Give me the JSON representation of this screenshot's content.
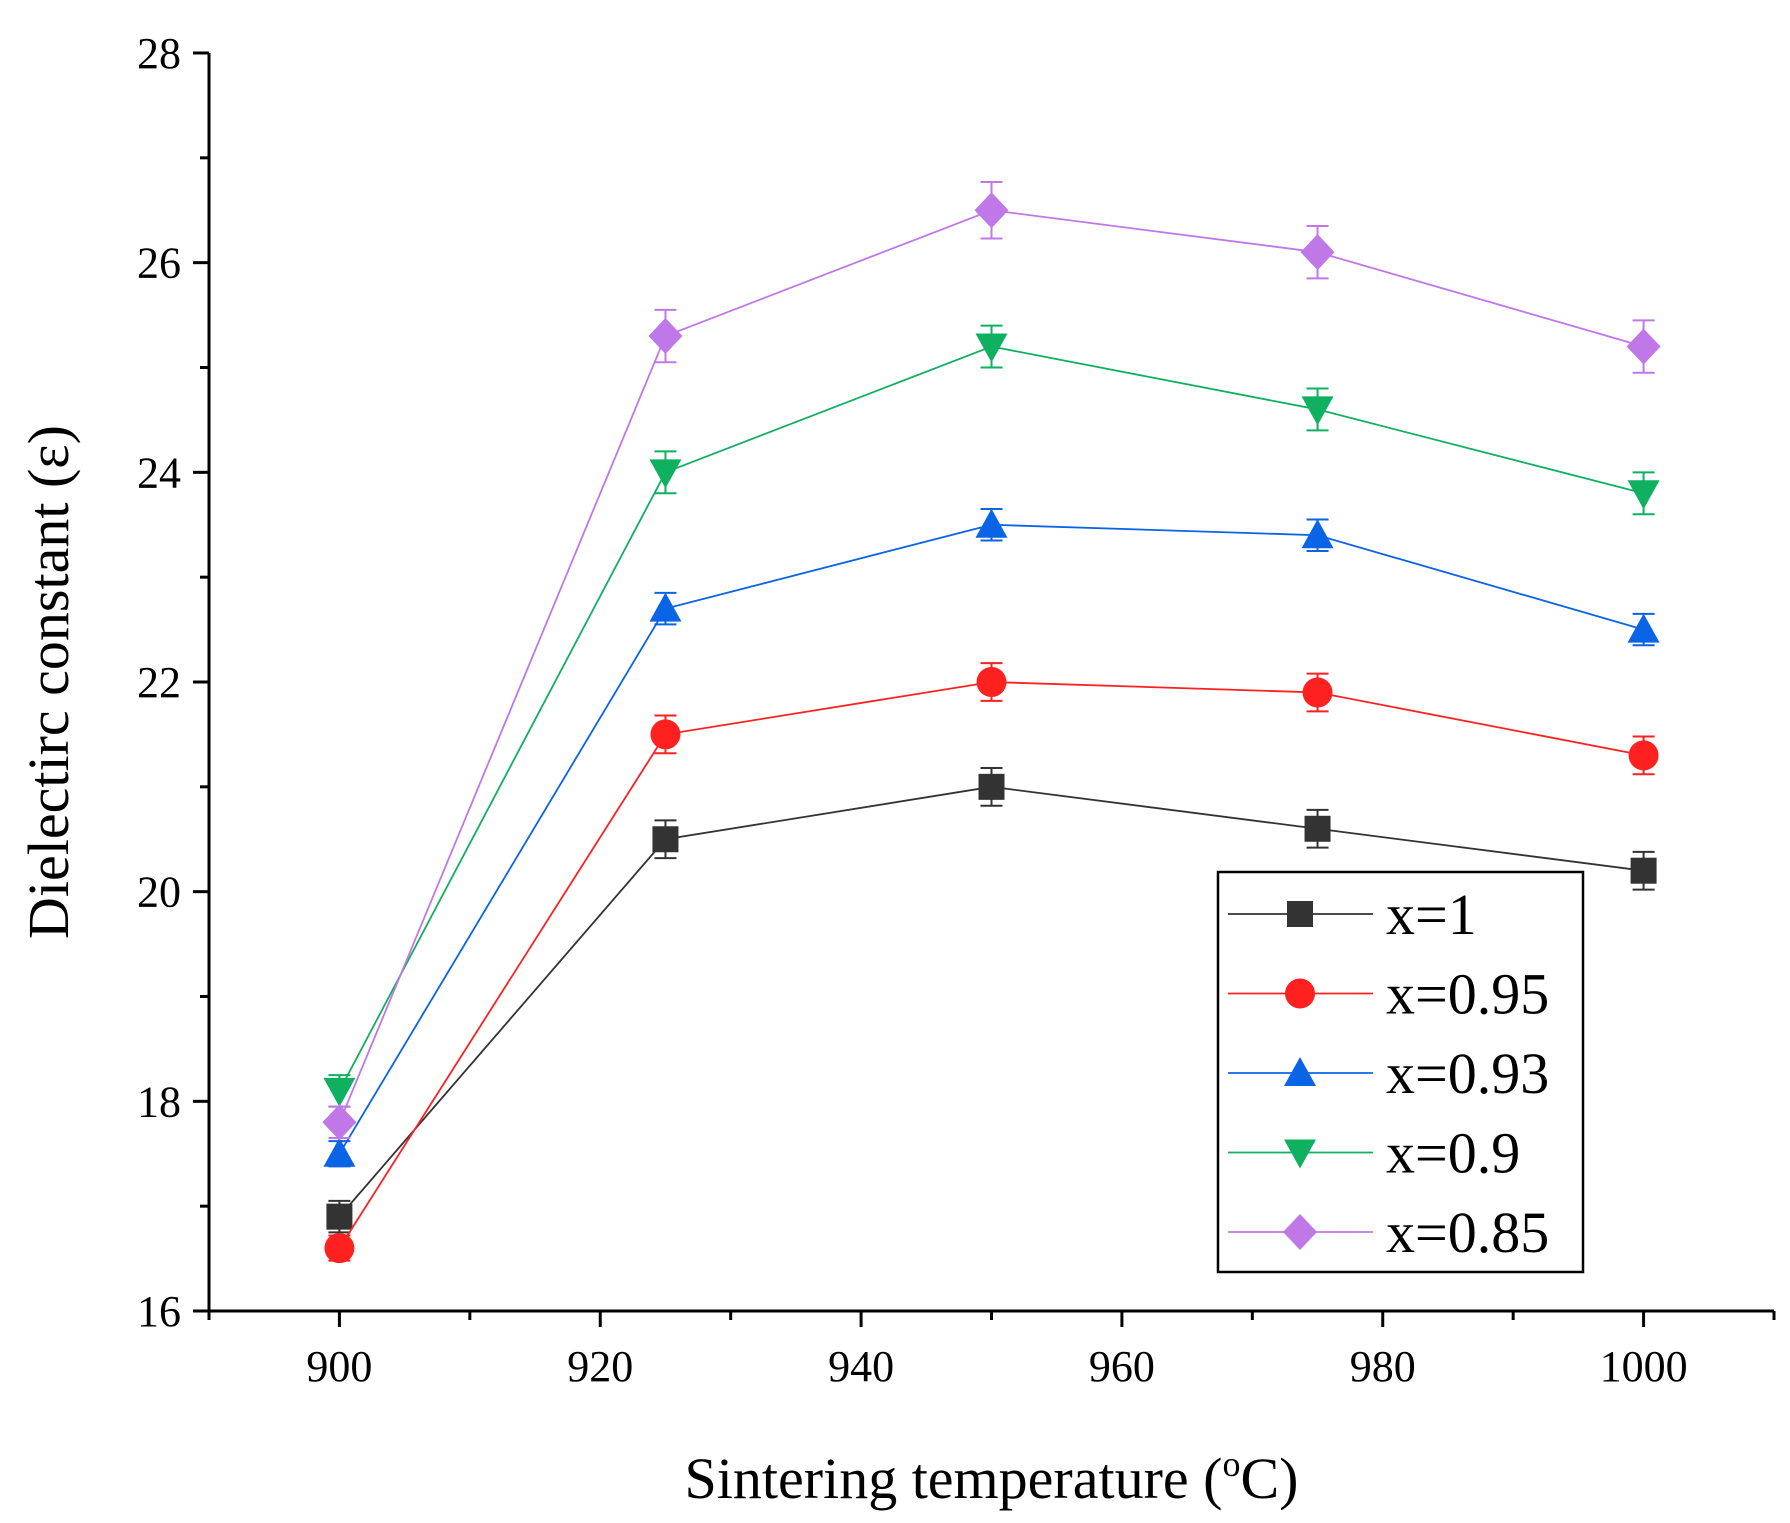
{
  "chart_data": {
    "type": "line",
    "title": "",
    "xlabel": "Sintering temperature (",
    "xlabel_sup": "o",
    "xlabel_tail": "C)",
    "ylabel": "Dielectirc constant (ε)",
    "xlim": [
      890,
      1010
    ],
    "ylim": [
      16,
      28
    ],
    "xticks": [
      900,
      920,
      940,
      960,
      980,
      1000
    ],
    "yticks": [
      16,
      18,
      20,
      22,
      24,
      26,
      28
    ],
    "x": [
      900,
      925,
      950,
      975,
      1000
    ],
    "legend_position": "lower-right",
    "grid": false,
    "series": [
      {
        "name": "x=1",
        "marker": "square",
        "color": "#333333",
        "values": [
          16.9,
          20.5,
          21.0,
          20.6,
          20.2
        ],
        "errors": [
          0.15,
          0.18,
          0.18,
          0.18,
          0.18
        ]
      },
      {
        "name": "x=0.95",
        "marker": "circle",
        "color": "#ff2020",
        "values": [
          16.6,
          21.5,
          22.0,
          21.9,
          21.3
        ],
        "errors": [
          0.12,
          0.18,
          0.18,
          0.18,
          0.18
        ]
      },
      {
        "name": "x=0.93",
        "marker": "triangle-up",
        "color": "#0a64e6",
        "values": [
          17.5,
          22.7,
          23.5,
          23.4,
          22.5
        ],
        "errors": [
          0.12,
          0.15,
          0.15,
          0.15,
          0.15
        ]
      },
      {
        "name": "x=0.9",
        "marker": "triangle-down",
        "color": "#0fb060",
        "values": [
          18.1,
          24.0,
          25.2,
          24.6,
          23.8
        ],
        "errors": [
          0.15,
          0.2,
          0.2,
          0.2,
          0.2
        ]
      },
      {
        "name": "x=0.85",
        "marker": "diamond",
        "color": "#c077e8",
        "values": [
          17.8,
          25.3,
          26.5,
          26.1,
          25.2
        ],
        "errors": [
          0.15,
          0.25,
          0.27,
          0.25,
          0.25
        ]
      }
    ]
  }
}
